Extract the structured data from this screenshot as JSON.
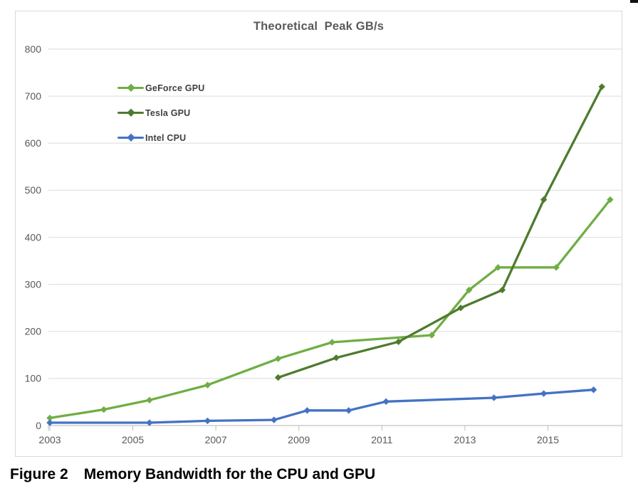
{
  "figure": {
    "caption_label": "Figure 2",
    "caption_text": "Memory Bandwidth for the CPU and GPU"
  },
  "chart_data": {
    "type": "line",
    "title": "Theoretical  Peak GB/s",
    "xlabel": "",
    "ylabel": "",
    "ylim": [
      0,
      800
    ],
    "xlim": [
      2002.9,
      2016.8
    ],
    "yticks": [
      0,
      100,
      200,
      300,
      400,
      500,
      600,
      700,
      800
    ],
    "xticks": [
      2003,
      2005,
      2007,
      2009,
      2011,
      2013,
      2015
    ],
    "grid": "horizontal-only",
    "legend_position": "inside-top-left",
    "colors": {
      "grid_line": "#e2e2e2",
      "axis_line": "#c3c3c3",
      "tick_mark": "#bdbdbd",
      "tick_label": "#595959",
      "title_text": "#595959",
      "legend_text": "#3f3f3f",
      "panel_border": "#d9d9d9"
    },
    "series": [
      {
        "name": "GeForce GPU",
        "color": "#6FAE44",
        "points": [
          [
            2003.0,
            16
          ],
          [
            2004.3,
            34
          ],
          [
            2005.4,
            54
          ],
          [
            2006.8,
            86
          ],
          [
            2008.5,
            142
          ],
          [
            2009.8,
            177
          ],
          [
            2012.2,
            192
          ],
          [
            2013.1,
            288
          ],
          [
            2013.8,
            336
          ],
          [
            2015.2,
            336
          ],
          [
            2016.5,
            480
          ]
        ]
      },
      {
        "name": "Tesla GPU",
        "color": "#4E7B2E",
        "points": [
          [
            2008.5,
            102
          ],
          [
            2009.9,
            144
          ],
          [
            2011.4,
            178
          ],
          [
            2012.9,
            250
          ],
          [
            2013.9,
            288
          ],
          [
            2014.9,
            480
          ],
          [
            2016.3,
            720
          ]
        ]
      },
      {
        "name": "Intel CPU",
        "color": "#4472C4",
        "points": [
          [
            2003.0,
            6
          ],
          [
            2005.4,
            6
          ],
          [
            2006.8,
            10
          ],
          [
            2008.4,
            12
          ],
          [
            2009.2,
            32
          ],
          [
            2010.2,
            32
          ],
          [
            2011.1,
            51
          ],
          [
            2013.7,
            59
          ],
          [
            2014.9,
            68
          ],
          [
            2016.1,
            76
          ]
        ]
      }
    ]
  }
}
